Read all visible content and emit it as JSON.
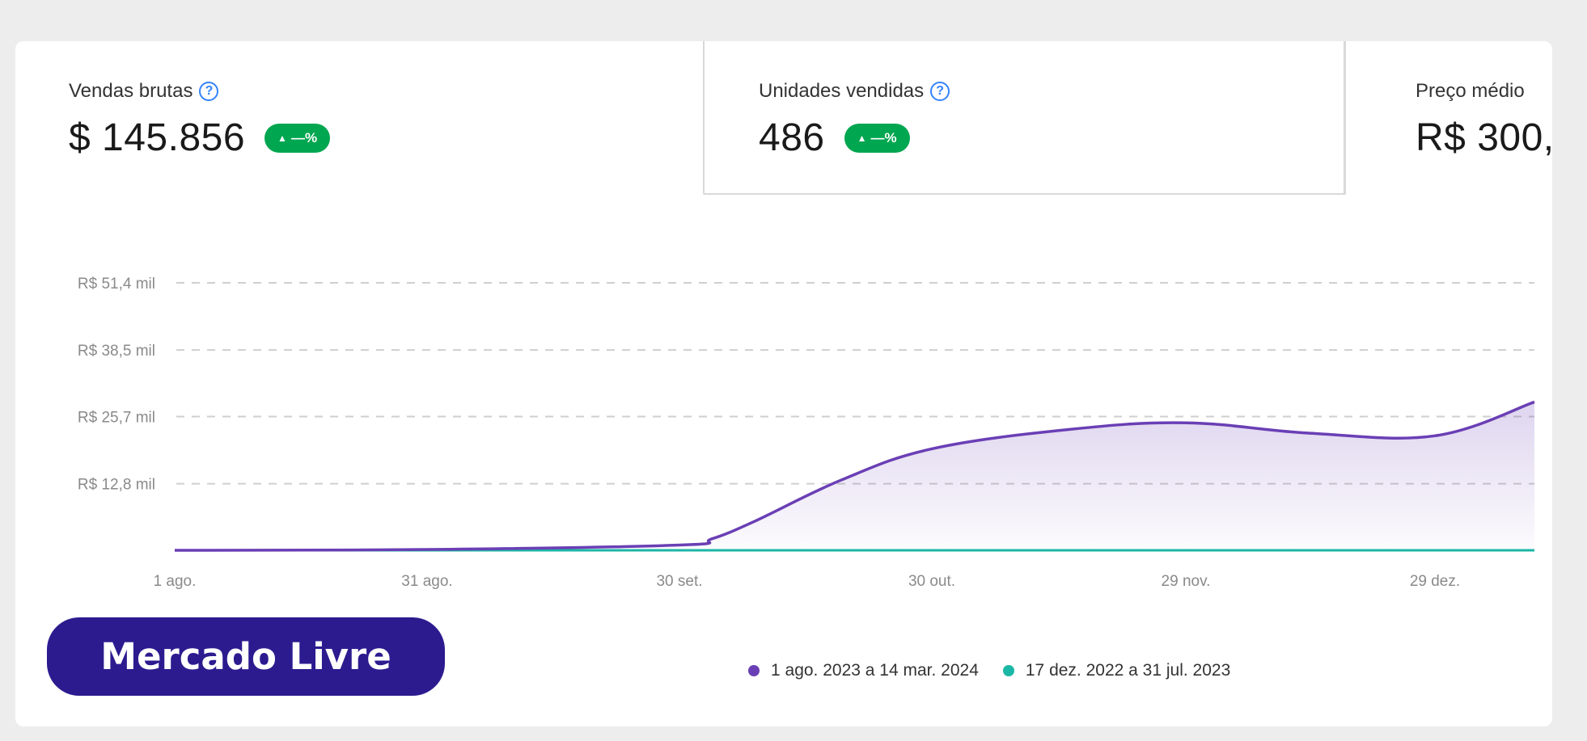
{
  "metrics": [
    {
      "label": "Vendas brutas",
      "value": "$ 145.856",
      "badge": "—%"
    },
    {
      "label": "Unidades vendidas",
      "value": "486",
      "badge": "—%"
    },
    {
      "label": "Preço médio",
      "value": "R$ 300,"
    }
  ],
  "brand": {
    "label": "Mercado Livre",
    "color": "#2c1b8f"
  },
  "colors": {
    "current": "#6a3fb5",
    "previous": "#1bb7a6",
    "badge": "#00a650",
    "help": "#3483fa"
  },
  "icons": {
    "help": "question-circle-icon",
    "badge_arrow": "triangle-up-icon"
  },
  "chart_data": {
    "type": "area",
    "x_tick_labels": [
      "1 ago.",
      "31 ago.",
      "30 set.",
      "30 out.",
      "29 nov.",
      "29 dez."
    ],
    "y_tick_labels": [
      "R$ 12,8 mil",
      "R$ 25,7 mil",
      "R$ 38,5 mil",
      "R$ 51,4 mil"
    ],
    "y_tick_values": [
      12800,
      25700,
      38500,
      51400
    ],
    "ylim": [
      0,
      51400
    ],
    "grid": true,
    "legend_position": "bottom-center",
    "series": [
      {
        "name": "1 ago. 2023 a 14 mar. 2024",
        "color": "#6a3fb5",
        "x": [
          "1 ago.",
          "31 ago.",
          "30 set.",
          "5 out.",
          "10 out.",
          "20 out.",
          "30 out.",
          "15 nov.",
          "29 nov.",
          "15 dez.",
          "29 dez.",
          "8 jan."
        ],
        "values": [
          0,
          150,
          1000,
          2200,
          5500,
          13500,
          19500,
          23200,
          24500,
          22500,
          22000,
          28500
        ]
      },
      {
        "name": "17 dez. 2022 a 31 jul. 2023",
        "color": "#1bb7a6",
        "x": [
          "1 ago.",
          "31 ago.",
          "30 set.",
          "30 out.",
          "29 nov.",
          "29 dez.",
          "8 jan."
        ],
        "values": [
          0,
          0,
          0,
          0,
          0,
          0,
          0
        ]
      }
    ]
  }
}
